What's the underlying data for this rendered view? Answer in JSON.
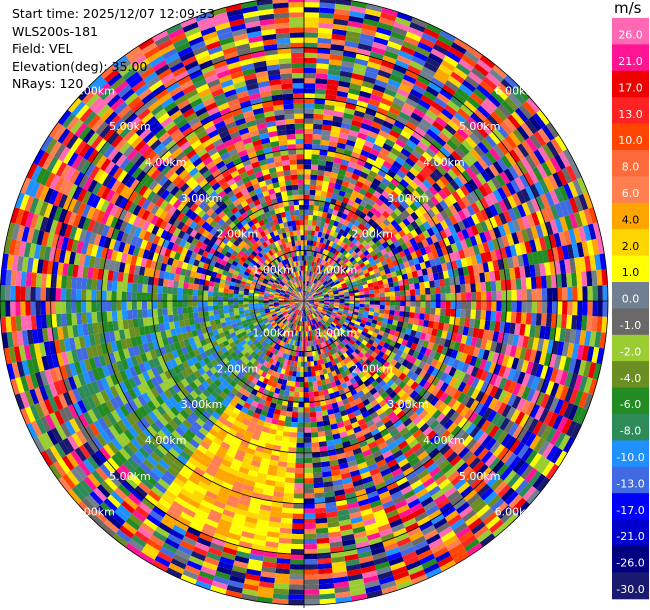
{
  "header": {
    "start_time": "Start time: 2025/12/07 12:09:53",
    "instrument": "WLS200s-181",
    "field": "Field: VEL",
    "elevation": "Elevation(deg): 35.00",
    "nrays": "NRays: 120"
  },
  "chart_data": {
    "type": "heatmap",
    "projection": "polar",
    "field": "VEL",
    "n_rays": 120,
    "range_max_km": 6.0,
    "range_rings_km": [
      1,
      2,
      3,
      4,
      5,
      6
    ],
    "ring_labels": [
      "1.00km",
      "2.00km",
      "3.00km",
      "4.00km",
      "5.00km",
      "6.00km"
    ],
    "colorbar": {
      "title": "m/s",
      "tick_labels": [
        "26.0",
        "21.0",
        "17.0",
        "13.0",
        "10.0",
        "8.0",
        "6.0",
        "4.0",
        "2.0",
        "1.0",
        "0.0",
        "-1.0",
        "-2.0",
        "-4.0",
        "-6.0",
        "-8.0",
        "-10.0",
        "-13.0",
        "-17.0",
        "-21.0",
        "-26.0",
        "-30.0"
      ],
      "colors": [
        "#ff69b4",
        "#ff1493",
        "#ee0000",
        "#ff2222",
        "#ff4500",
        "#ff6a3a",
        "#ff7f50",
        "#ffa500",
        "#ffd700",
        "#ffff00",
        "#708090",
        "#696969",
        "#9acd32",
        "#6b8e23",
        "#228b22",
        "#2e8b57",
        "#1e90ff",
        "#4169e1",
        "#0000ff",
        "#0000cd",
        "#000080",
        "#191970"
      ]
    },
    "regions": [
      {
        "azimuth_deg": [
          215,
          275
        ],
        "range_km": [
          0.8,
          4.8
        ],
        "colors": [
          "#1e90ff",
          "#4169e1",
          "#228b22",
          "#2e8b57",
          "#6b8e23",
          "#9acd32"
        ]
      },
      {
        "azimuth_deg": [
          183,
          215
        ],
        "range_km": [
          2.5,
          5.0
        ],
        "colors": [
          "#ffff00",
          "#ffd700",
          "#ffa500",
          "#ff7f50"
        ]
      }
    ]
  }
}
